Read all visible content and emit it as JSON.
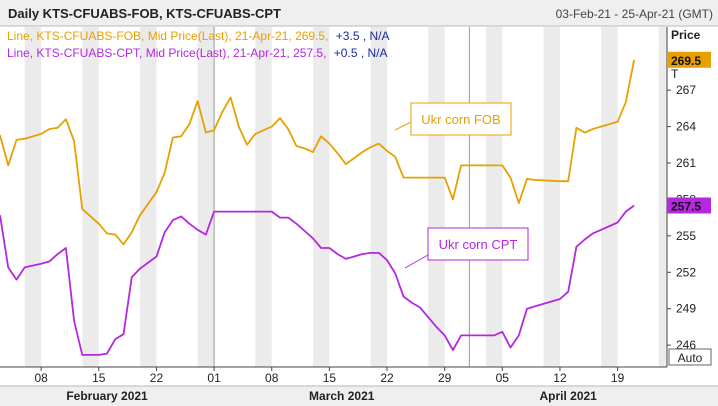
{
  "header": {
    "title": "Daily KTS-CFUABS-FOB, KTS-CFUABS-CPT",
    "date_range": "03-Feb-21 - 25-Apr-21 (GMT)"
  },
  "legend_lines": [
    {
      "label": "Line, KTS-CFUABS-FOB, Mid Price(Last), 21-Apr-21, 269.5,",
      "change": "+3.5",
      "na": ", N/A",
      "color": "#E8A000"
    },
    {
      "label": "Line, KTS-CFUABS-CPT, Mid Price(Last), 21-Apr-21, 257.5,",
      "change": "+0.5",
      "na": ", N/A",
      "color": "#B428E0"
    }
  ],
  "y_axis": {
    "title": "Price",
    "unit_suffix": "T",
    "auto_label": "Auto"
  },
  "annotations": [
    {
      "text": "Ukr corn FOB",
      "color": "#E8A000"
    },
    {
      "text": "Ukr corn CPT",
      "color": "#B428E0"
    }
  ],
  "colors": {
    "fob": "#E8A000",
    "cpt": "#B428E0",
    "grid": "#c8c8c8",
    "shade": "#ebebeb",
    "header_bg": "#efefef"
  },
  "chart_data": {
    "type": "line",
    "x_type": "date",
    "xlim": [
      "2021-02-03",
      "2021-04-25"
    ],
    "ylim": [
      244.2,
      272.2
    ],
    "yticks": [
      246,
      249,
      252,
      255,
      258,
      261,
      264,
      267
    ],
    "x_ticks": [
      {
        "date": "2021-02-08",
        "label": "08"
      },
      {
        "date": "2021-02-15",
        "label": "15"
      },
      {
        "date": "2021-02-22",
        "label": "22"
      },
      {
        "date": "2021-03-01",
        "label": "01"
      },
      {
        "date": "2021-03-08",
        "label": "08"
      },
      {
        "date": "2021-03-15",
        "label": "15"
      },
      {
        "date": "2021-03-22",
        "label": "22"
      },
      {
        "date": "2021-03-29",
        "label": "29"
      },
      {
        "date": "2021-04-05",
        "label": "05"
      },
      {
        "date": "2021-04-12",
        "label": "12"
      },
      {
        "date": "2021-04-19",
        "label": "19"
      }
    ],
    "months": [
      {
        "label": "February 2021",
        "start": "2021-02-03",
        "end": "2021-03-01"
      },
      {
        "label": "March 2021",
        "start": "2021-03-01",
        "end": "2021-04-01"
      },
      {
        "label": "April 2021",
        "start": "2021-04-01",
        "end": "2021-04-25"
      }
    ],
    "weekends": [
      [
        "2021-02-06",
        "2021-02-08"
      ],
      [
        "2021-02-13",
        "2021-02-15"
      ],
      [
        "2021-02-20",
        "2021-02-22"
      ],
      [
        "2021-02-27",
        "2021-03-01"
      ],
      [
        "2021-03-06",
        "2021-03-08"
      ],
      [
        "2021-03-13",
        "2021-03-15"
      ],
      [
        "2021-03-20",
        "2021-03-22"
      ],
      [
        "2021-03-27",
        "2021-03-29"
      ],
      [
        "2021-04-03",
        "2021-04-05"
      ],
      [
        "2021-04-10",
        "2021-04-12"
      ],
      [
        "2021-04-17",
        "2021-04-19"
      ],
      [
        "2021-04-24",
        "2021-04-25"
      ]
    ],
    "series": [
      {
        "name": "KTS-CFUABS-FOB",
        "last_value": "269.5",
        "points": [
          [
            "2021-02-03",
            263.3
          ],
          [
            "2021-02-04",
            260.8
          ],
          [
            "2021-02-05",
            262.9
          ],
          [
            "2021-02-06",
            263.0
          ],
          [
            "2021-02-08",
            263.4
          ],
          [
            "2021-02-09",
            263.8
          ],
          [
            "2021-02-10",
            263.9
          ],
          [
            "2021-02-11",
            264.6
          ],
          [
            "2021-02-12",
            262.8
          ],
          [
            "2021-02-13",
            257.2
          ],
          [
            "2021-02-14",
            256.6
          ],
          [
            "2021-02-15",
            256.0
          ],
          [
            "2021-02-16",
            255.2
          ],
          [
            "2021-02-17",
            255.1
          ],
          [
            "2021-02-18",
            254.3
          ],
          [
            "2021-02-19",
            255.3
          ],
          [
            "2021-02-20",
            256.7
          ],
          [
            "2021-02-22",
            258.6
          ],
          [
            "2021-02-23",
            260.2
          ],
          [
            "2021-02-24",
            263.1
          ],
          [
            "2021-02-25",
            263.2
          ],
          [
            "2021-02-26",
            264.2
          ],
          [
            "2021-02-27",
            266.1
          ],
          [
            "2021-02-28",
            263.5
          ],
          [
            "2021-03-01",
            263.7
          ],
          [
            "2021-03-02",
            265.2
          ],
          [
            "2021-03-03",
            266.4
          ],
          [
            "2021-03-04",
            264.0
          ],
          [
            "2021-03-05",
            262.5
          ],
          [
            "2021-03-06",
            263.4
          ],
          [
            "2021-03-08",
            264.0
          ],
          [
            "2021-03-09",
            264.7
          ],
          [
            "2021-03-10",
            263.8
          ],
          [
            "2021-03-11",
            262.4
          ],
          [
            "2021-03-12",
            262.2
          ],
          [
            "2021-03-13",
            261.9
          ],
          [
            "2021-03-14",
            263.2
          ],
          [
            "2021-03-15",
            262.6
          ],
          [
            "2021-03-16",
            261.8
          ],
          [
            "2021-03-17",
            260.9
          ],
          [
            "2021-03-18",
            261.4
          ],
          [
            "2021-03-19",
            261.9
          ],
          [
            "2021-03-20",
            262.3
          ],
          [
            "2021-03-21",
            262.6
          ],
          [
            "2021-03-22",
            262.0
          ],
          [
            "2021-03-23",
            261.5
          ],
          [
            "2021-03-24",
            259.8
          ],
          [
            "2021-03-25",
            259.8
          ],
          [
            "2021-03-26",
            259.8
          ],
          [
            "2021-03-27",
            259.8
          ],
          [
            "2021-03-28",
            259.8
          ],
          [
            "2021-03-29",
            259.8
          ],
          [
            "2021-03-30",
            258.0
          ],
          [
            "2021-03-31",
            260.8
          ],
          [
            "2021-04-01",
            260.8
          ],
          [
            "2021-04-04",
            260.8
          ],
          [
            "2021-04-05",
            260.8
          ],
          [
            "2021-04-06",
            259.8
          ],
          [
            "2021-04-07",
            257.7
          ],
          [
            "2021-04-08",
            259.7
          ],
          [
            "2021-04-09",
            259.6
          ],
          [
            "2021-04-12",
            259.5
          ],
          [
            "2021-04-13",
            259.5
          ],
          [
            "2021-04-14",
            263.9
          ],
          [
            "2021-04-15",
            263.5
          ],
          [
            "2021-04-16",
            263.8
          ],
          [
            "2021-04-19",
            264.4
          ],
          [
            "2021-04-20",
            266.0
          ],
          [
            "2021-04-21",
            269.5
          ]
        ]
      },
      {
        "name": "KTS-CFUABS-CPT",
        "last_value": "257.5",
        "points": [
          [
            "2021-02-03",
            256.7
          ],
          [
            "2021-02-04",
            252.4
          ],
          [
            "2021-02-05",
            251.4
          ],
          [
            "2021-02-06",
            252.4
          ],
          [
            "2021-02-08",
            252.7
          ],
          [
            "2021-02-09",
            252.9
          ],
          [
            "2021-02-10",
            253.5
          ],
          [
            "2021-02-11",
            254.0
          ],
          [
            "2021-02-12",
            248.0
          ],
          [
            "2021-02-13",
            245.2
          ],
          [
            "2021-02-14",
            245.2
          ],
          [
            "2021-02-15",
            245.2
          ],
          [
            "2021-02-16",
            245.3
          ],
          [
            "2021-02-17",
            246.5
          ],
          [
            "2021-02-18",
            246.9
          ],
          [
            "2021-02-19",
            251.6
          ],
          [
            "2021-02-20",
            252.3
          ],
          [
            "2021-02-22",
            253.3
          ],
          [
            "2021-02-23",
            255.3
          ],
          [
            "2021-02-24",
            256.3
          ],
          [
            "2021-02-25",
            256.6
          ],
          [
            "2021-02-26",
            256.0
          ],
          [
            "2021-02-27",
            255.5
          ],
          [
            "2021-02-28",
            255.1
          ],
          [
            "2021-03-01",
            257.0
          ],
          [
            "2021-03-02",
            257.0
          ],
          [
            "2021-03-03",
            257.0
          ],
          [
            "2021-03-04",
            257.0
          ],
          [
            "2021-03-05",
            257.0
          ],
          [
            "2021-03-06",
            257.0
          ],
          [
            "2021-03-08",
            257.0
          ],
          [
            "2021-03-09",
            256.5
          ],
          [
            "2021-03-10",
            256.5
          ],
          [
            "2021-03-11",
            256.0
          ],
          [
            "2021-03-12",
            255.4
          ],
          [
            "2021-03-13",
            254.8
          ],
          [
            "2021-03-14",
            254.0
          ],
          [
            "2021-03-15",
            254.0
          ],
          [
            "2021-03-16",
            253.5
          ],
          [
            "2021-03-17",
            253.1
          ],
          [
            "2021-03-18",
            253.3
          ],
          [
            "2021-03-19",
            253.5
          ],
          [
            "2021-03-20",
            253.6
          ],
          [
            "2021-03-21",
            253.6
          ],
          [
            "2021-03-22",
            253.0
          ],
          [
            "2021-03-23",
            251.9
          ],
          [
            "2021-03-24",
            250.0
          ],
          [
            "2021-03-25",
            249.5
          ],
          [
            "2021-03-26",
            249.1
          ],
          [
            "2021-03-27",
            248.3
          ],
          [
            "2021-03-28",
            247.5
          ],
          [
            "2021-03-29",
            246.8
          ],
          [
            "2021-03-30",
            245.6
          ],
          [
            "2021-03-31",
            246.8
          ],
          [
            "2021-04-01",
            246.8
          ],
          [
            "2021-04-02",
            246.8
          ],
          [
            "2021-04-04",
            246.8
          ],
          [
            "2021-04-05",
            247.1
          ],
          [
            "2021-04-06",
            245.8
          ],
          [
            "2021-04-07",
            246.8
          ],
          [
            "2021-04-08",
            249.0
          ],
          [
            "2021-04-09",
            249.2
          ],
          [
            "2021-04-12",
            249.8
          ],
          [
            "2021-04-13",
            250.4
          ],
          [
            "2021-04-14",
            254.1
          ],
          [
            "2021-04-15",
            254.7
          ],
          [
            "2021-04-16",
            255.2
          ],
          [
            "2021-04-19",
            256.1
          ],
          [
            "2021-04-20",
            257.0
          ],
          [
            "2021-04-21",
            257.5
          ]
        ]
      }
    ]
  }
}
